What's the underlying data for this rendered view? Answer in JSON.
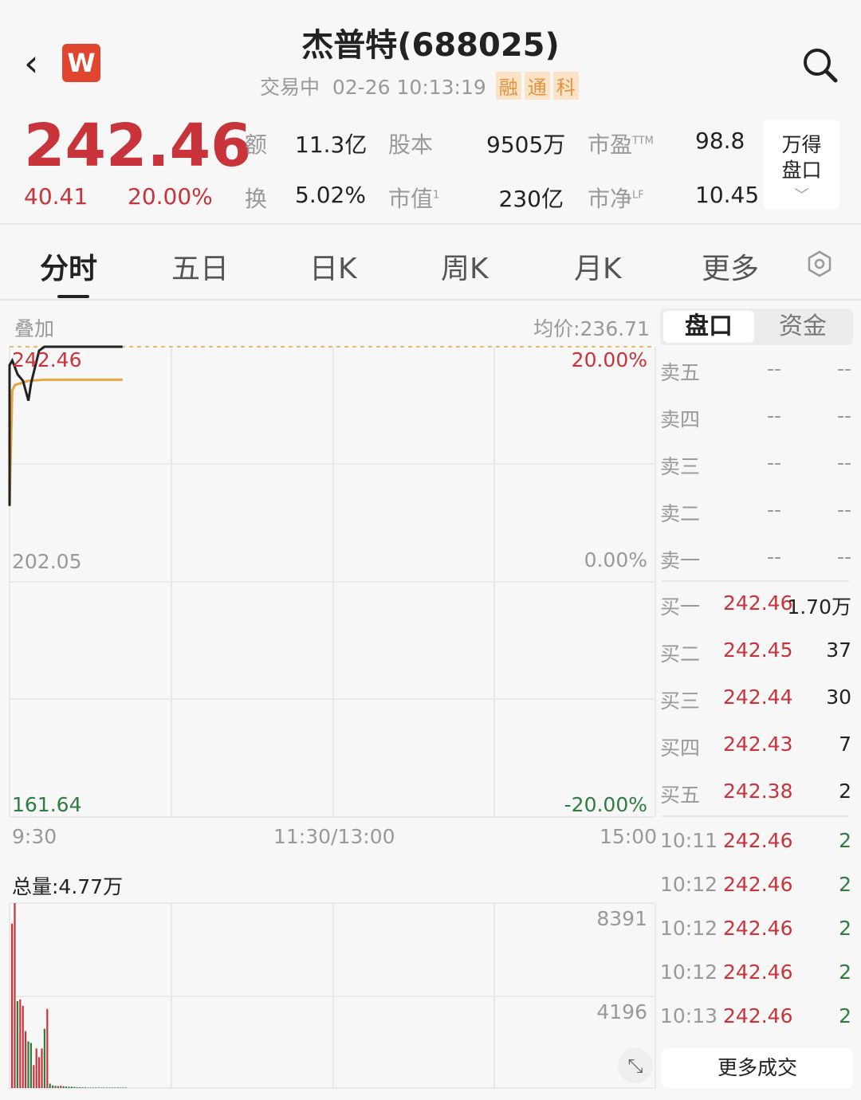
{
  "header": {
    "title": "杰普特(688025)",
    "status": "交易中",
    "datetime": "02-26 10:13:19",
    "tags": [
      "融",
      "通",
      "科"
    ],
    "logo_letter": "W"
  },
  "quote": {
    "price": "242.46",
    "change": "40.41",
    "change_pct": "20.00%",
    "stats": [
      {
        "label": "额",
        "value": "11.3亿"
      },
      {
        "label": "股本",
        "value": "9505万"
      },
      {
        "label": "市盈",
        "sup": "TTM",
        "value": "98.8"
      },
      {
        "label": "换",
        "value": "5.02%"
      },
      {
        "label": "市值",
        "sup": "1",
        "value": "230亿"
      },
      {
        "label": "市净",
        "sup": "LF",
        "value": "10.45"
      }
    ],
    "wind_button": [
      "万得",
      "盘口"
    ]
  },
  "tabs": [
    "分时",
    "五日",
    "日K",
    "周K",
    "月K",
    "更多"
  ],
  "chart": {
    "overlay_label": "叠加",
    "avg_label": "均价:236.71",
    "y_top": "242.46",
    "y_mid": "202.05",
    "y_bot": "161.64",
    "pct_top": "20.00%",
    "pct_mid": "0.00%",
    "pct_bot": "-20.00%",
    "x_labels": [
      "9:30",
      "11:30/13:00",
      "15:00"
    ],
    "total_vol": "总量:4.77万",
    "vol_labels": [
      "8391",
      "4196"
    ]
  },
  "chart_data": {
    "type": "line",
    "ylim": [
      161.64,
      242.46
    ],
    "xlim": [
      "9:30",
      "15:00"
    ],
    "price": [
      [
        "9:30",
        215.1
      ],
      [
        "9:30",
        239.3
      ],
      [
        "9:31",
        240.1
      ],
      [
        "9:33",
        237.7
      ],
      [
        "9:35",
        236.6
      ],
      [
        "9:37",
        233.2
      ],
      [
        "9:38",
        236.2
      ],
      [
        "9:41",
        241.8
      ],
      [
        "9:43",
        242.46
      ],
      [
        "10:12",
        242.46
      ]
    ],
    "avg": [
      [
        "9:30",
        215.1
      ],
      [
        "9:31",
        234.9
      ],
      [
        "9:32",
        235.9
      ],
      [
        "9:37",
        236.6
      ],
      [
        "9:43",
        236.8
      ],
      [
        "10:12",
        236.8
      ]
    ],
    "volume": {
      "ylim": [
        0,
        8391
      ],
      "values": [
        7460,
        8391,
        3945,
        4017,
        3730,
        2582,
        2116,
        2044,
        1040,
        1793,
        1399,
        1793,
        2690,
        3586,
        200,
        120,
        100,
        90,
        110,
        80,
        70,
        60,
        60,
        50,
        40,
        40,
        30,
        30,
        20,
        20,
        20,
        20,
        20,
        20,
        20,
        20,
        20,
        20,
        20,
        20,
        20,
        20,
        20
      ],
      "colors": [
        "r",
        "r",
        "g",
        "r",
        "r",
        "r",
        "g",
        "g",
        "r",
        "r",
        "r",
        "r",
        "g",
        "r",
        "g",
        "g",
        "r",
        "g",
        "r",
        "g",
        "g",
        "g",
        "g",
        "g",
        "g",
        "g",
        "g",
        "g",
        "g",
        "g",
        "g",
        "g",
        "g",
        "g",
        "g",
        "g",
        "g",
        "g",
        "g",
        "g",
        "g",
        "g",
        "g"
      ]
    }
  },
  "panel": {
    "tabs": [
      "盘口",
      "资金"
    ],
    "asks": [
      {
        "label": "卖五",
        "price": "--",
        "vol": "--"
      },
      {
        "label": "卖四",
        "price": "--",
        "vol": "--"
      },
      {
        "label": "卖三",
        "price": "--",
        "vol": "--"
      },
      {
        "label": "卖二",
        "price": "--",
        "vol": "--"
      },
      {
        "label": "卖一",
        "price": "--",
        "vol": "--"
      }
    ],
    "bids": [
      {
        "label": "买一",
        "price": "242.46",
        "vol": "1.70万"
      },
      {
        "label": "买二",
        "price": "242.45",
        "vol": "37"
      },
      {
        "label": "买三",
        "price": "242.44",
        "vol": "30"
      },
      {
        "label": "买四",
        "price": "242.43",
        "vol": "7"
      },
      {
        "label": "买五",
        "price": "242.38",
        "vol": "2"
      }
    ],
    "trades": [
      {
        "time": "10:11",
        "price": "242.46",
        "vol": "2"
      },
      {
        "time": "10:12",
        "price": "242.46",
        "vol": "2"
      },
      {
        "time": "10:12",
        "price": "242.46",
        "vol": "2"
      },
      {
        "time": "10:12",
        "price": "242.46",
        "vol": "2"
      },
      {
        "time": "10:13",
        "price": "242.46",
        "vol": "2"
      }
    ],
    "more_trades": "更多成交"
  },
  "colors": {
    "up": "#c9343a",
    "down": "#2e7d3e",
    "avg": "#e7a444",
    "price_line": "#222222"
  }
}
